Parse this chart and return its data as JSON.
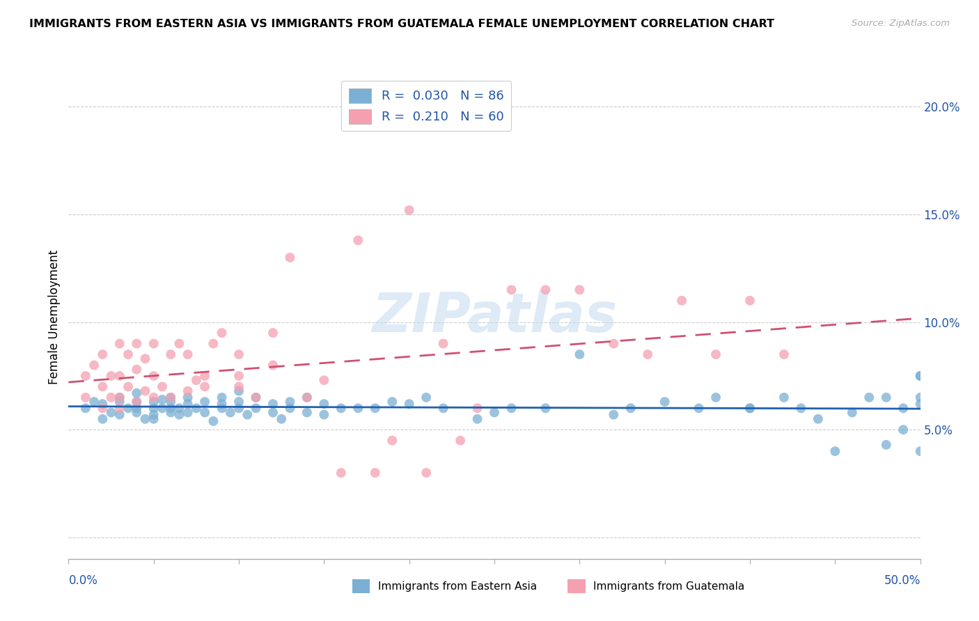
{
  "title": "IMMIGRANTS FROM EASTERN ASIA VS IMMIGRANTS FROM GUATEMALA FEMALE UNEMPLOYMENT CORRELATION CHART",
  "source": "Source: ZipAtlas.com",
  "ylabel": "Female Unemployment",
  "y_ticks": [
    0.0,
    0.05,
    0.1,
    0.15,
    0.2
  ],
  "y_tick_labels": [
    "",
    "5.0%",
    "10.0%",
    "15.0%",
    "20.0%"
  ],
  "x_lim": [
    0.0,
    0.5
  ],
  "y_lim": [
    -0.01,
    0.215
  ],
  "watermark": "ZIPatlas",
  "blue_color": "#7bafd4",
  "pink_color": "#f4a0b0",
  "blue_line_color": "#2060b0",
  "pink_line_color": "#d05070",
  "blue_scatter_x": [
    0.01,
    0.015,
    0.02,
    0.02,
    0.025,
    0.03,
    0.03,
    0.03,
    0.035,
    0.04,
    0.04,
    0.04,
    0.04,
    0.045,
    0.05,
    0.05,
    0.05,
    0.05,
    0.055,
    0.055,
    0.06,
    0.06,
    0.06,
    0.06,
    0.065,
    0.065,
    0.07,
    0.07,
    0.07,
    0.075,
    0.08,
    0.08,
    0.085,
    0.09,
    0.09,
    0.09,
    0.095,
    0.1,
    0.1,
    0.1,
    0.105,
    0.11,
    0.11,
    0.12,
    0.12,
    0.125,
    0.13,
    0.13,
    0.14,
    0.14,
    0.15,
    0.15,
    0.16,
    0.17,
    0.18,
    0.19,
    0.2,
    0.21,
    0.22,
    0.24,
    0.25,
    0.26,
    0.28,
    0.3,
    0.32,
    0.33,
    0.35,
    0.37,
    0.38,
    0.4,
    0.4,
    0.42,
    0.43,
    0.44,
    0.45,
    0.46,
    0.47,
    0.48,
    0.48,
    0.49,
    0.49,
    0.5,
    0.5,
    0.5,
    0.5,
    0.5
  ],
  "blue_scatter_y": [
    0.06,
    0.063,
    0.055,
    0.062,
    0.058,
    0.065,
    0.057,
    0.063,
    0.06,
    0.063,
    0.067,
    0.058,
    0.06,
    0.055,
    0.055,
    0.06,
    0.063,
    0.057,
    0.064,
    0.06,
    0.06,
    0.065,
    0.058,
    0.063,
    0.06,
    0.057,
    0.062,
    0.065,
    0.058,
    0.06,
    0.063,
    0.058,
    0.054,
    0.062,
    0.06,
    0.065,
    0.058,
    0.068,
    0.063,
    0.06,
    0.057,
    0.065,
    0.06,
    0.062,
    0.058,
    0.055,
    0.063,
    0.06,
    0.065,
    0.058,
    0.062,
    0.057,
    0.06,
    0.06,
    0.06,
    0.063,
    0.062,
    0.065,
    0.06,
    0.055,
    0.058,
    0.06,
    0.06,
    0.085,
    0.057,
    0.06,
    0.063,
    0.06,
    0.065,
    0.06,
    0.06,
    0.065,
    0.06,
    0.055,
    0.04,
    0.058,
    0.065,
    0.043,
    0.065,
    0.06,
    0.05,
    0.075,
    0.062,
    0.065,
    0.04,
    0.075
  ],
  "pink_scatter_x": [
    0.01,
    0.01,
    0.015,
    0.02,
    0.02,
    0.02,
    0.025,
    0.025,
    0.03,
    0.03,
    0.03,
    0.03,
    0.035,
    0.035,
    0.04,
    0.04,
    0.04,
    0.045,
    0.045,
    0.05,
    0.05,
    0.05,
    0.055,
    0.06,
    0.06,
    0.065,
    0.07,
    0.07,
    0.075,
    0.08,
    0.08,
    0.085,
    0.09,
    0.1,
    0.1,
    0.1,
    0.11,
    0.12,
    0.12,
    0.13,
    0.14,
    0.15,
    0.16,
    0.17,
    0.18,
    0.19,
    0.2,
    0.21,
    0.22,
    0.23,
    0.24,
    0.26,
    0.28,
    0.3,
    0.32,
    0.34,
    0.36,
    0.38,
    0.4,
    0.42
  ],
  "pink_scatter_y": [
    0.075,
    0.065,
    0.08,
    0.06,
    0.07,
    0.085,
    0.065,
    0.075,
    0.06,
    0.065,
    0.075,
    0.09,
    0.07,
    0.085,
    0.063,
    0.078,
    0.09,
    0.068,
    0.083,
    0.065,
    0.075,
    0.09,
    0.07,
    0.065,
    0.085,
    0.09,
    0.068,
    0.085,
    0.073,
    0.07,
    0.075,
    0.09,
    0.095,
    0.07,
    0.075,
    0.085,
    0.065,
    0.08,
    0.095,
    0.13,
    0.065,
    0.073,
    0.03,
    0.138,
    0.03,
    0.045,
    0.152,
    0.03,
    0.09,
    0.045,
    0.06,
    0.115,
    0.115,
    0.115,
    0.09,
    0.085,
    0.11,
    0.085,
    0.11,
    0.085
  ]
}
